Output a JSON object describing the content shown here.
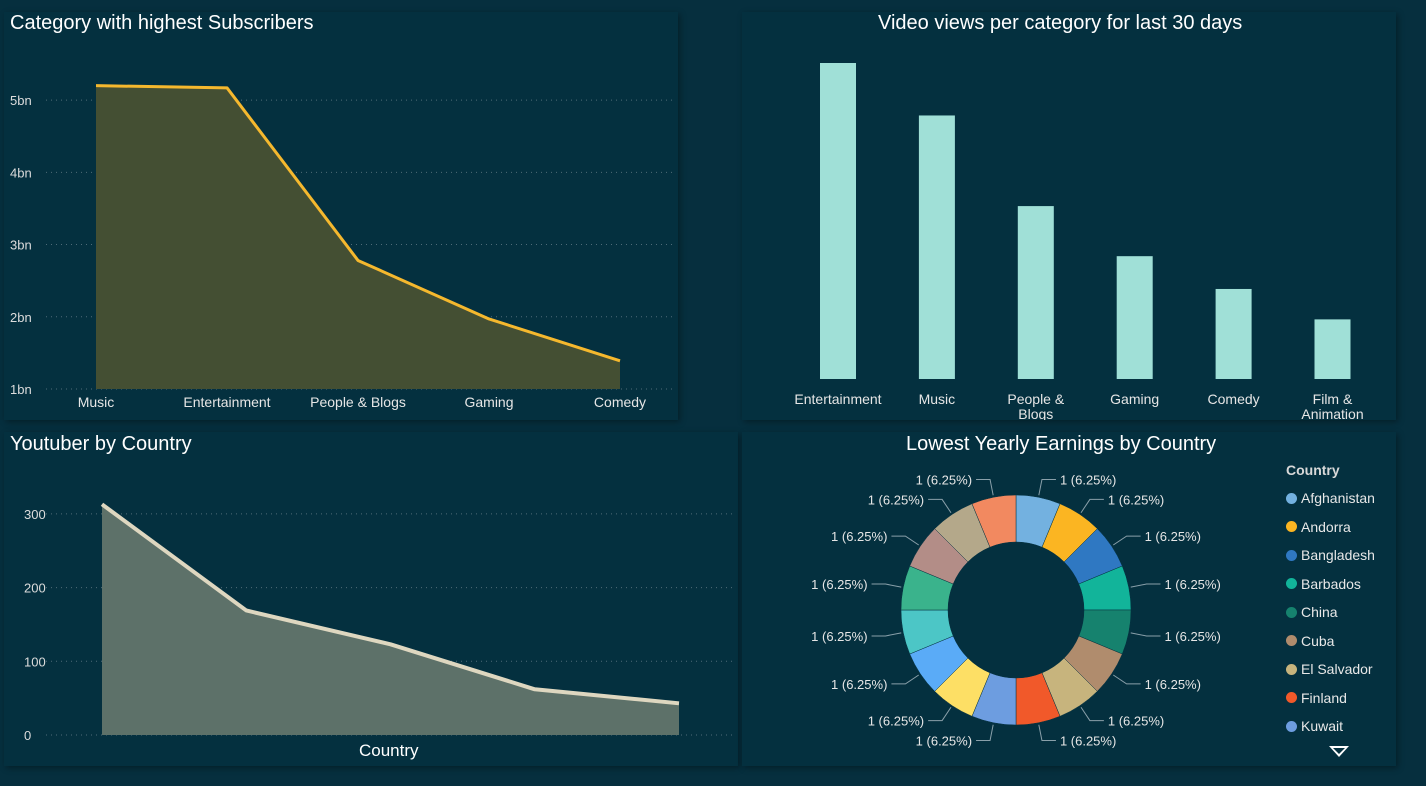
{
  "charts": {
    "subscribers": {
      "title": "Category with highest Subscribers",
      "chart_data": {
        "type": "area",
        "categories": [
          "Music",
          "Entertainment",
          "People & Blogs",
          "Gaming",
          "Comedy"
        ],
        "values": [
          5.2,
          5.17,
          2.78,
          1.97,
          1.39
        ],
        "ylim": [
          1,
          5.5
        ],
        "y_ticks": [
          1,
          2,
          3,
          4,
          5
        ],
        "y_tick_labels": [
          "1bn",
          "2bn",
          "3bn",
          "4bn",
          "5bn"
        ],
        "grid": true,
        "colors": {
          "line": "#f5b82e",
          "fill": "#444f33"
        }
      }
    },
    "views": {
      "title": "Video views per category for last 30 days",
      "chart_data": {
        "type": "bar",
        "categories": [
          "Entertainment",
          "Music",
          "People & Blogs",
          "Gaming",
          "Comedy",
          "Film & Animation"
        ],
        "category_lines": [
          [
            "Entertainment"
          ],
          [
            "Music"
          ],
          [
            "People &",
            "Blogs"
          ],
          [
            "Gaming"
          ],
          [
            "Comedy"
          ],
          [
            "Film &",
            "Animation"
          ]
        ],
        "values": [
          5.3,
          4.42,
          2.9,
          2.06,
          1.51,
          1.0
        ],
        "ylim": [
          0,
          5.3
        ],
        "grid": false,
        "colors": {
          "bar": "#a0e0d7"
        }
      }
    },
    "country": {
      "title": "Youtuber by Country",
      "chart_data": {
        "type": "area",
        "categories": [
          "",
          "",
          "",
          "",
          ""
        ],
        "values": [
          313,
          169,
          123,
          62,
          43
        ],
        "xlabel": "Country",
        "ylim": [
          0,
          340
        ],
        "y_ticks": [
          0,
          100,
          200,
          300
        ],
        "y_tick_labels": [
          "0",
          "100",
          "200",
          "300"
        ],
        "grid": true,
        "colors": {
          "line": "#ded7c0",
          "fill": "#5d7169"
        }
      }
    },
    "earnings": {
      "title": "Lowest Yearly Earnings by Country",
      "legend_title": "Country",
      "chart_data": {
        "type": "pie",
        "donut": true,
        "values": [
          1,
          1,
          1,
          1,
          1,
          1,
          1,
          1,
          1,
          1,
          1,
          1,
          1,
          1,
          1,
          1
        ],
        "slice_label": "1 (6.25%)",
        "slice_colors": [
          "#73b1e0",
          "#fbb522",
          "#2f78c2",
          "#12b49a",
          "#16826e",
          "#b08c6d",
          "#c7b47d",
          "#f1592a",
          "#6d9de0",
          "#fddf65",
          "#5aabf7",
          "#4cc6c6",
          "#3ab38c",
          "#b38d87",
          "#b4a88a",
          "#f28960"
        ],
        "legend": [
          {
            "name": "Afghanistan",
            "color": "#73b1e0"
          },
          {
            "name": "Andorra",
            "color": "#fbb522"
          },
          {
            "name": "Bangladesh",
            "color": "#2f78c2"
          },
          {
            "name": "Barbados",
            "color": "#12b49a"
          },
          {
            "name": "China",
            "color": "#16826e"
          },
          {
            "name": "Cuba",
            "color": "#b08c6d"
          },
          {
            "name": "El Salvador",
            "color": "#c7b47d"
          },
          {
            "name": "Finland",
            "color": "#f1592a"
          },
          {
            "name": "Kuwait",
            "color": "#6d9de0"
          }
        ],
        "legend_placement": "right"
      }
    }
  }
}
